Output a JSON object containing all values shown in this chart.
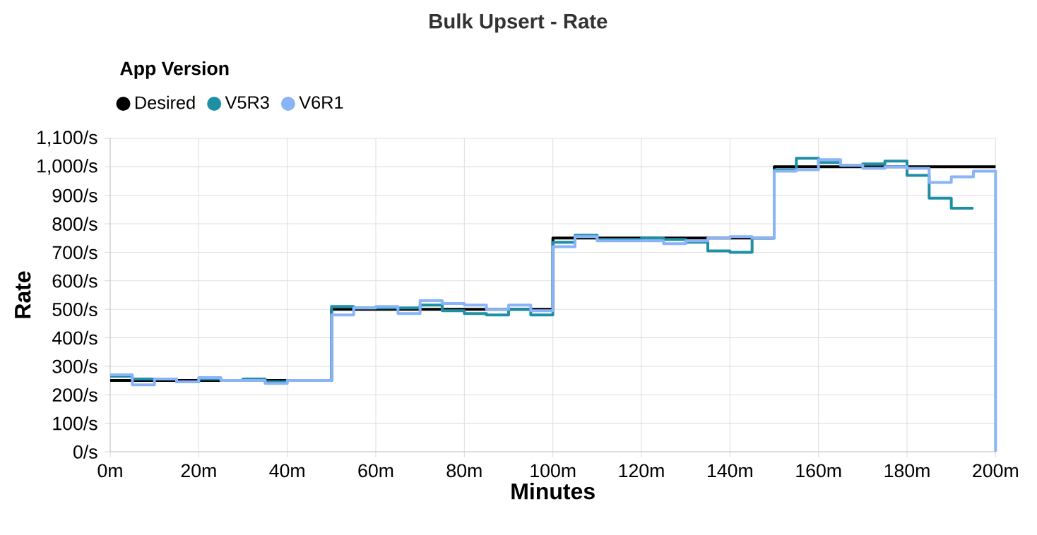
{
  "chart_data": {
    "type": "step",
    "title": "Bulk Upsert - Rate",
    "xlabel": "Minutes",
    "ylabel": "Rate",
    "legend_title": "App Version",
    "legend": "top left",
    "grid": true,
    "xlim": [
      0,
      200
    ],
    "ylim": [
      0,
      1100
    ],
    "xticks": [
      {
        "value": 0,
        "label": "0m"
      },
      {
        "value": 20,
        "label": "20m"
      },
      {
        "value": 40,
        "label": "40m"
      },
      {
        "value": 60,
        "label": "60m"
      },
      {
        "value": 80,
        "label": "80m"
      },
      {
        "value": 100,
        "label": "100m"
      },
      {
        "value": 120,
        "label": "120m"
      },
      {
        "value": 140,
        "label": "140m"
      },
      {
        "value": 160,
        "label": "160m"
      },
      {
        "value": 180,
        "label": "180m"
      },
      {
        "value": 200,
        "label": "200m"
      }
    ],
    "yticks": [
      {
        "value": 0,
        "label": "0/s"
      },
      {
        "value": 100,
        "label": "100/s"
      },
      {
        "value": 200,
        "label": "200/s"
      },
      {
        "value": 300,
        "label": "300/s"
      },
      {
        "value": 400,
        "label": "400/s"
      },
      {
        "value": 500,
        "label": "500/s"
      },
      {
        "value": 600,
        "label": "600/s"
      },
      {
        "value": 700,
        "label": "700/s"
      },
      {
        "value": 800,
        "label": "800/s"
      },
      {
        "value": 900,
        "label": "900/s"
      },
      {
        "value": 1000,
        "label": "1,000/s"
      },
      {
        "value": 1100,
        "label": "1,100/s"
      }
    ],
    "series": [
      {
        "name": "Desired",
        "color": "#000000",
        "x": [
          0,
          50,
          100,
          150,
          200
        ],
        "values": [
          250,
          500,
          750,
          1000,
          1000
        ]
      },
      {
        "name": "V5R3",
        "color": "#1f8fa6",
        "x": [
          0,
          5,
          10,
          15,
          20,
          25,
          30,
          35,
          40,
          45,
          50,
          55,
          60,
          65,
          70,
          75,
          80,
          85,
          90,
          95,
          100,
          105,
          110,
          115,
          120,
          125,
          130,
          135,
          140,
          145,
          150,
          155,
          160,
          165,
          170,
          175,
          180,
          185,
          190,
          195
        ],
        "values": [
          265,
          255,
          255,
          245,
          255,
          250,
          255,
          245,
          250,
          250,
          510,
          505,
          505,
          505,
          515,
          495,
          485,
          480,
          500,
          480,
          735,
          760,
          745,
          745,
          750,
          745,
          735,
          705,
          700,
          750,
          990,
          1030,
          1015,
          1005,
          1010,
          1020,
          970,
          890,
          855,
          855
        ]
      },
      {
        "name": "V6R1",
        "color": "#8ab4f8",
        "x": [
          0,
          5,
          10,
          15,
          20,
          25,
          30,
          35,
          40,
          45,
          50,
          55,
          60,
          65,
          70,
          75,
          80,
          85,
          90,
          95,
          100,
          105,
          110,
          115,
          120,
          125,
          130,
          135,
          140,
          145,
          150,
          155,
          160,
          165,
          170,
          175,
          180,
          185,
          190,
          195,
          200
        ],
        "values": [
          270,
          235,
          255,
          245,
          260,
          250,
          250,
          240,
          250,
          250,
          480,
          505,
          510,
          485,
          530,
          520,
          515,
          500,
          515,
          495,
          720,
          755,
          740,
          740,
          740,
          730,
          740,
          750,
          755,
          750,
          985,
          990,
          1025,
          1005,
          995,
          1000,
          995,
          945,
          965,
          985,
          0
        ]
      }
    ]
  }
}
